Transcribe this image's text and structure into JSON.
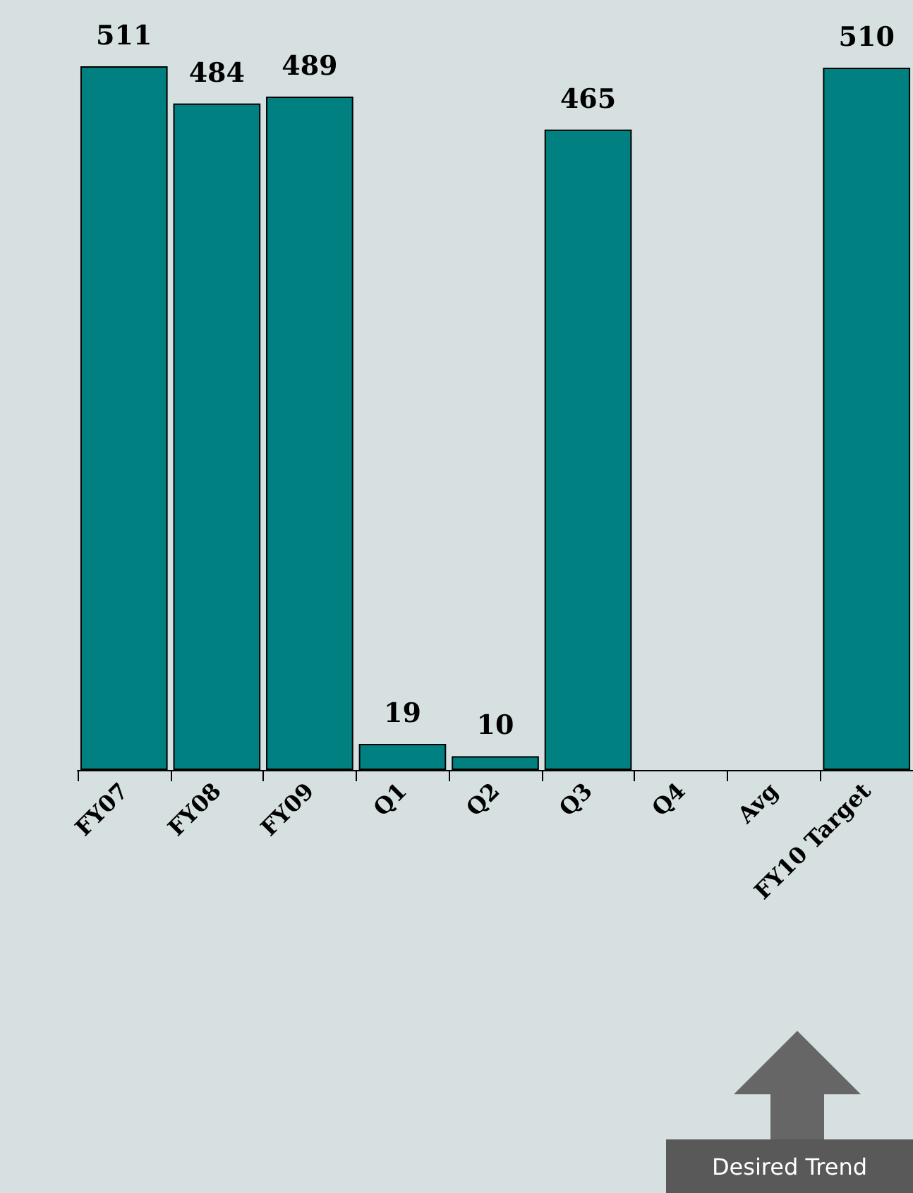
{
  "chart_data": {
    "type": "bar",
    "categories": [
      "FY07",
      "FY08",
      "FY09",
      "Q1",
      "Q2",
      "Q3",
      "Q4",
      "Avg",
      "FY10 Target"
    ],
    "values": [
      511,
      484,
      489,
      19,
      10,
      465,
      null,
      null,
      510
    ],
    "color": "#008080",
    "data_labels": true,
    "tick_labels": "x",
    "annotations": [
      "Desired Trend"
    ]
  }
}
